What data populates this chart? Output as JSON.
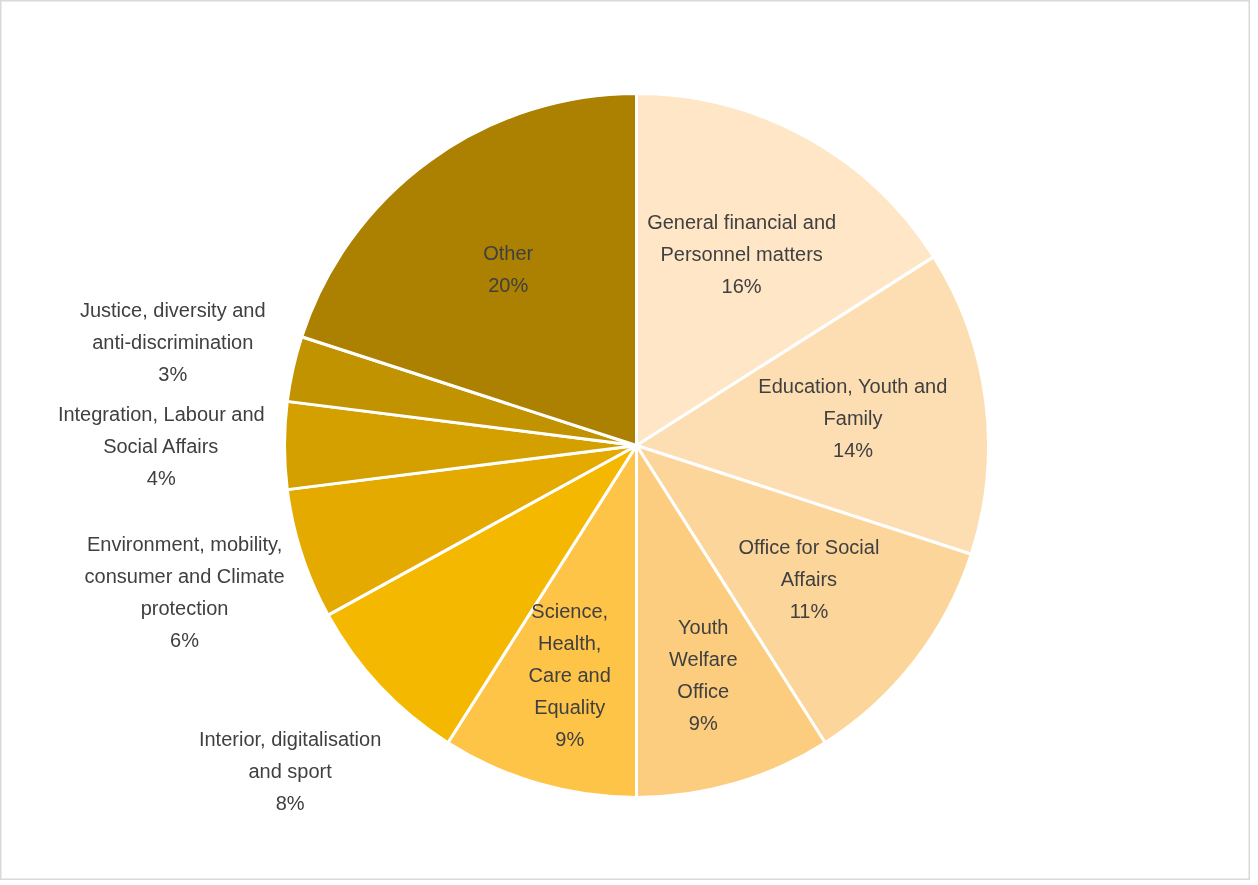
{
  "chart_data": {
    "type": "pie",
    "categories": [
      "General financial and Personnel matters",
      "Education, Youth and Family",
      "Office for Social Affairs",
      "Youth Welfare Office",
      "Science, Health, Care and Equality",
      "Interior, digitalisation and sport",
      "Environment, mobility, consumer and Climate protection",
      "Integration, Labour and Social Affairs",
      "Justice, diversity and anti-discrimination",
      "Other"
    ],
    "values": [
      16,
      14,
      11,
      9,
      9,
      8,
      6,
      4,
      3,
      20
    ],
    "value_labels": [
      "16%",
      "14%",
      "11%",
      "9%",
      "9%",
      "8%",
      "6%",
      "4%",
      "3%",
      "20%"
    ],
    "colors": [
      "#fee6c6",
      "#fddeb2",
      "#fcd59b",
      "#fccd7f",
      "#fdc447",
      "#f5b800",
      "#e5aa00",
      "#d4a000",
      "#c29300",
      "#ac8000"
    ]
  }
}
